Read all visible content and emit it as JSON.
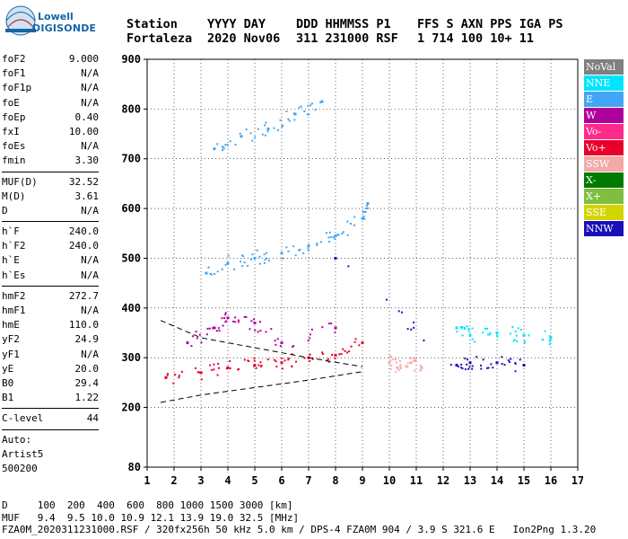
{
  "logo": {
    "brand_top": "Lowell",
    "brand_bottom": "DIGISONDE"
  },
  "header": {
    "row1": [
      "Station",
      "YYYY DAY",
      "DDD HHMMSS P1",
      "FFS S AXN PPS IGA PS"
    ],
    "row2": [
      "Fortaleza",
      "2020 Nov06",
      "311 231000 RSF",
      "1 714 100 10+ 11"
    ]
  },
  "params": {
    "group1": [
      {
        "name": "foF2",
        "value": "9.000"
      },
      {
        "name": "foF1",
        "value": "N/A"
      },
      {
        "name": "foF1p",
        "value": "N/A"
      },
      {
        "name": "foE",
        "value": "N/A"
      },
      {
        "name": "foEp",
        "value": "0.40"
      },
      {
        "name": "fxI",
        "value": "10.00"
      },
      {
        "name": "foEs",
        "value": "N/A"
      },
      {
        "name": "fmin",
        "value": "3.30"
      }
    ],
    "group2": [
      {
        "name": "MUF(D)",
        "value": "32.52"
      },
      {
        "name": "M(D)",
        "value": "3.61"
      },
      {
        "name": "D",
        "value": "N/A"
      }
    ],
    "group3": [
      {
        "name": "h`F",
        "value": "240.0"
      },
      {
        "name": "h`F2",
        "value": "240.0"
      },
      {
        "name": "h`E",
        "value": "N/A"
      },
      {
        "name": "h`Es",
        "value": "N/A"
      }
    ],
    "group4": [
      {
        "name": "hmF2",
        "value": "272.7"
      },
      {
        "name": "hmF1",
        "value": "N/A"
      },
      {
        "name": "hmE",
        "value": "110.0"
      },
      {
        "name": "yF2",
        "value": "24.9"
      },
      {
        "name": "yF1",
        "value": "N/A"
      },
      {
        "name": "yE",
        "value": "20.0"
      },
      {
        "name": "B0",
        "value": "29.4"
      },
      {
        "name": "B1",
        "value": "1.22"
      }
    ],
    "group5": [
      {
        "name": "C-level",
        "value": "44"
      }
    ],
    "auto_lines": [
      "Auto:",
      "Artist5",
      "500200"
    ]
  },
  "legend": [
    {
      "label": "NoVal",
      "color": "#808080"
    },
    {
      "label": "NNE",
      "color": "#00e5ff"
    },
    {
      "label": "E",
      "color": "#42a5f5"
    },
    {
      "label": "W",
      "color": "#b0009c"
    },
    {
      "label": "Vo-",
      "color": "#ff2a8a"
    },
    {
      "label": "Vo+",
      "color": "#e8002a"
    },
    {
      "label": "SSW",
      "color": "#f5a8a8"
    },
    {
      "label": "X-",
      "color": "#007a00"
    },
    {
      "label": "X+",
      "color": "#7fbf3f"
    },
    {
      "label": "SSE",
      "color": "#d4d400"
    },
    {
      "label": "NNW",
      "color": "#1a10b8"
    }
  ],
  "footer": {
    "line1": "D     100  200  400  600  800 1000 1500 3000 [km]",
    "line2": "MUF   9.4  9.5 10.0 10.9 12.1 13.9 19.0 32.5 [MHz]",
    "line3": "FZA0M_2020311231000.RSF / 320fx256h 50 kHz 5.0 km / DPS-4 FZA0M 904 / 3.9 S 321.6 E   Ion2Png 1.3.20"
  },
  "chart_data": {
    "type": "scatter",
    "x_range": [
      1,
      17
    ],
    "y_range": [
      80,
      900
    ],
    "x_ticks": [
      1,
      2,
      3,
      4,
      5,
      6,
      7,
      8,
      9,
      10,
      11,
      12,
      13,
      14,
      15,
      16,
      17
    ],
    "y_ticks": [
      80,
      200,
      300,
      400,
      500,
      600,
      700,
      800,
      900
    ],
    "grid": true,
    "series": [
      {
        "legend": "E",
        "color": "#42a5f5",
        "points": [
          [
            3.2,
            470
          ],
          [
            4,
            490
          ],
          [
            5,
            500
          ],
          [
            6,
            510
          ],
          [
            7,
            525
          ],
          [
            8,
            545
          ],
          [
            9,
            580
          ],
          [
            9.2,
            610
          ]
        ]
      },
      {
        "legend": "E",
        "color": "#42a5f5",
        "points": [
          [
            3.5,
            720
          ],
          [
            4.5,
            745
          ],
          [
            5.5,
            760
          ],
          [
            6.5,
            790
          ],
          [
            7.5,
            815
          ]
        ]
      },
      {
        "legend": "Vo+",
        "color": "#e8002a",
        "points": [
          [
            1.7,
            260
          ],
          [
            3,
            270
          ],
          [
            4,
            280
          ],
          [
            5,
            285
          ],
          [
            6,
            290
          ],
          [
            7,
            300
          ],
          [
            8,
            305
          ],
          [
            9,
            330
          ]
        ]
      },
      {
        "legend": "W",
        "color": "#b0009c",
        "points": [
          [
            2.5,
            330
          ],
          [
            3.5,
            360
          ],
          [
            4,
            380
          ],
          [
            5,
            370
          ],
          [
            6,
            330
          ],
          [
            8,
            360
          ]
        ]
      },
      {
        "legend": "SSW",
        "color": "#f5a8a8",
        "points": [
          [
            10,
            290
          ],
          [
            10.3,
            280
          ],
          [
            10.8,
            290
          ],
          [
            11.2,
            280
          ]
        ]
      },
      {
        "legend": "NNW",
        "color": "#1a10b8",
        "points": [
          [
            8,
            500
          ],
          [
            12.5,
            285
          ],
          [
            13,
            290
          ],
          [
            14,
            290
          ],
          [
            15,
            285
          ]
        ]
      },
      {
        "legend": "NNE",
        "color": "#00e5ff",
        "points": [
          [
            12.5,
            360
          ],
          [
            13,
            345
          ],
          [
            14,
            350
          ],
          [
            15,
            345
          ],
          [
            16,
            340
          ]
        ]
      }
    ],
    "curves": [
      {
        "name": "dashed",
        "points": [
          [
            1.5,
            210
          ],
          [
            3,
            225
          ],
          [
            5,
            240
          ],
          [
            7,
            255
          ],
          [
            9,
            272
          ]
        ]
      },
      {
        "name": "dashed2",
        "points": [
          [
            1.5,
            375
          ],
          [
            3,
            340
          ],
          [
            5,
            320
          ],
          [
            7,
            300
          ],
          [
            9,
            282
          ]
        ]
      }
    ]
  }
}
